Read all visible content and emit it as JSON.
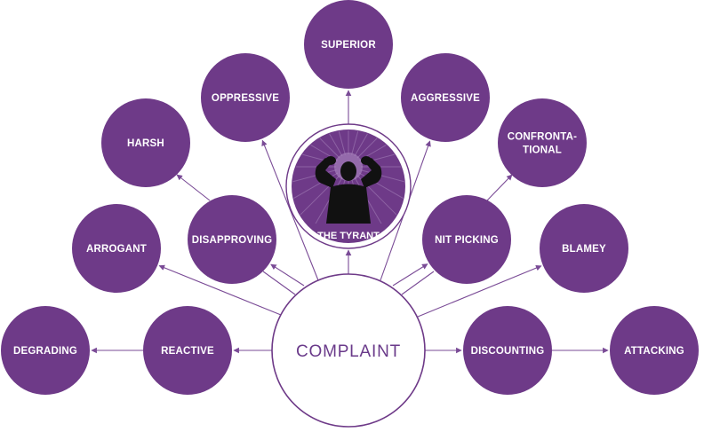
{
  "colors": {
    "node_fill": "#6e3a88",
    "line": "#7a4b96",
    "center_stroke": "#6e3a88",
    "center_text": "#6a3a8a",
    "silhouette": "#111111"
  },
  "center": {
    "label": "COMPLAINT"
  },
  "tyrant": {
    "label": "THE TYRANT",
    "icon": "person-arms-raised-icon"
  },
  "nodes": {
    "superior": [
      "SUPERIOR"
    ],
    "oppressive": [
      "OPPRESSIVE"
    ],
    "aggressive": [
      "AGGRESSIVE"
    ],
    "harsh": [
      "HARSH"
    ],
    "confrontational": [
      "CONFRONTA-",
      "TIONAL"
    ],
    "arrogant": [
      "ARROGANT"
    ],
    "disapproving": [
      "DISAPPROVING"
    ],
    "nit_picking": [
      "NIT PICKING"
    ],
    "blamey": [
      "BLAMEY"
    ],
    "degrading": [
      "DEGRADING"
    ],
    "reactive": [
      "REACTIVE"
    ],
    "discounting": [
      "DISCOUNTING"
    ],
    "attacking": [
      "ATTACKING"
    ]
  }
}
